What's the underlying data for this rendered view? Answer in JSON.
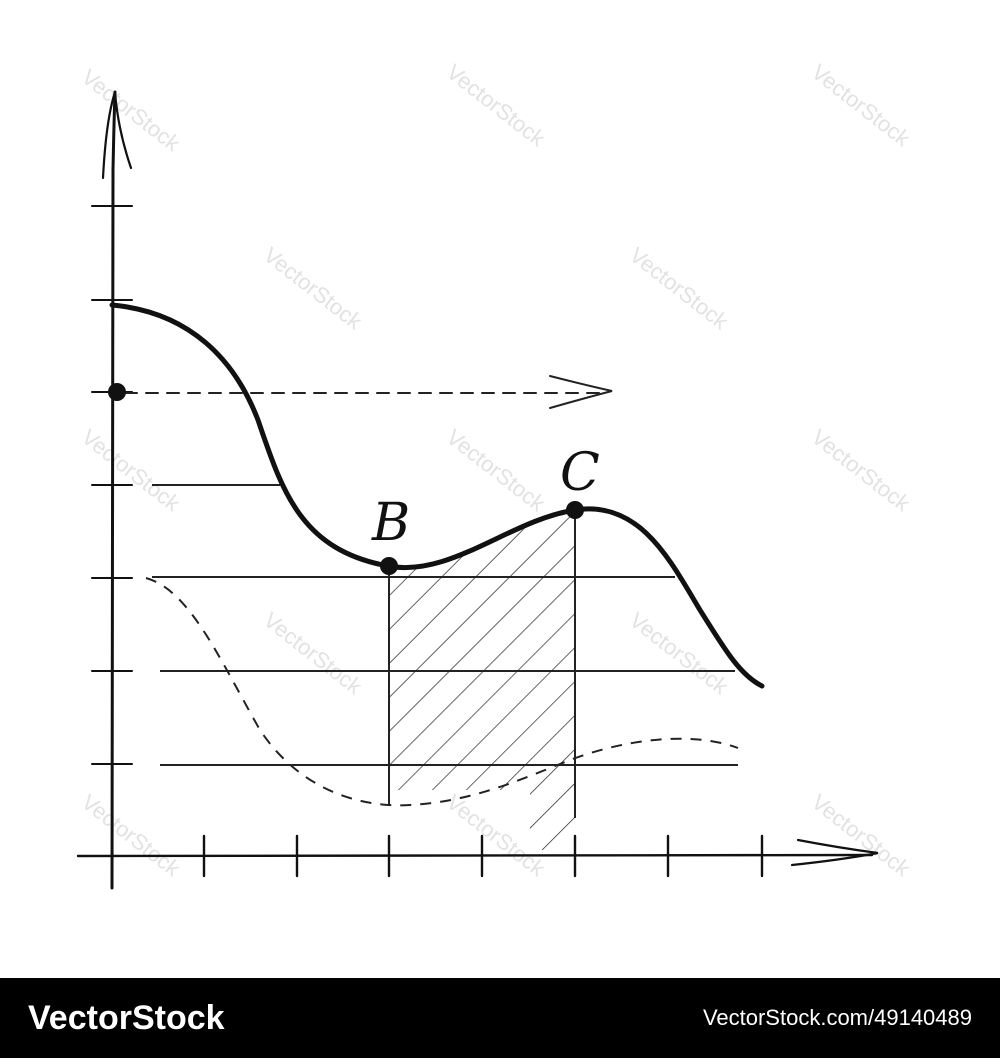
{
  "diagram": {
    "point_labels": {
      "b": "B",
      "c": "C"
    }
  },
  "watermark": {
    "text": "VectorStock"
  },
  "footer": {
    "brand": "VectorStock",
    "image_id": "VectorStock.com/49140489"
  }
}
